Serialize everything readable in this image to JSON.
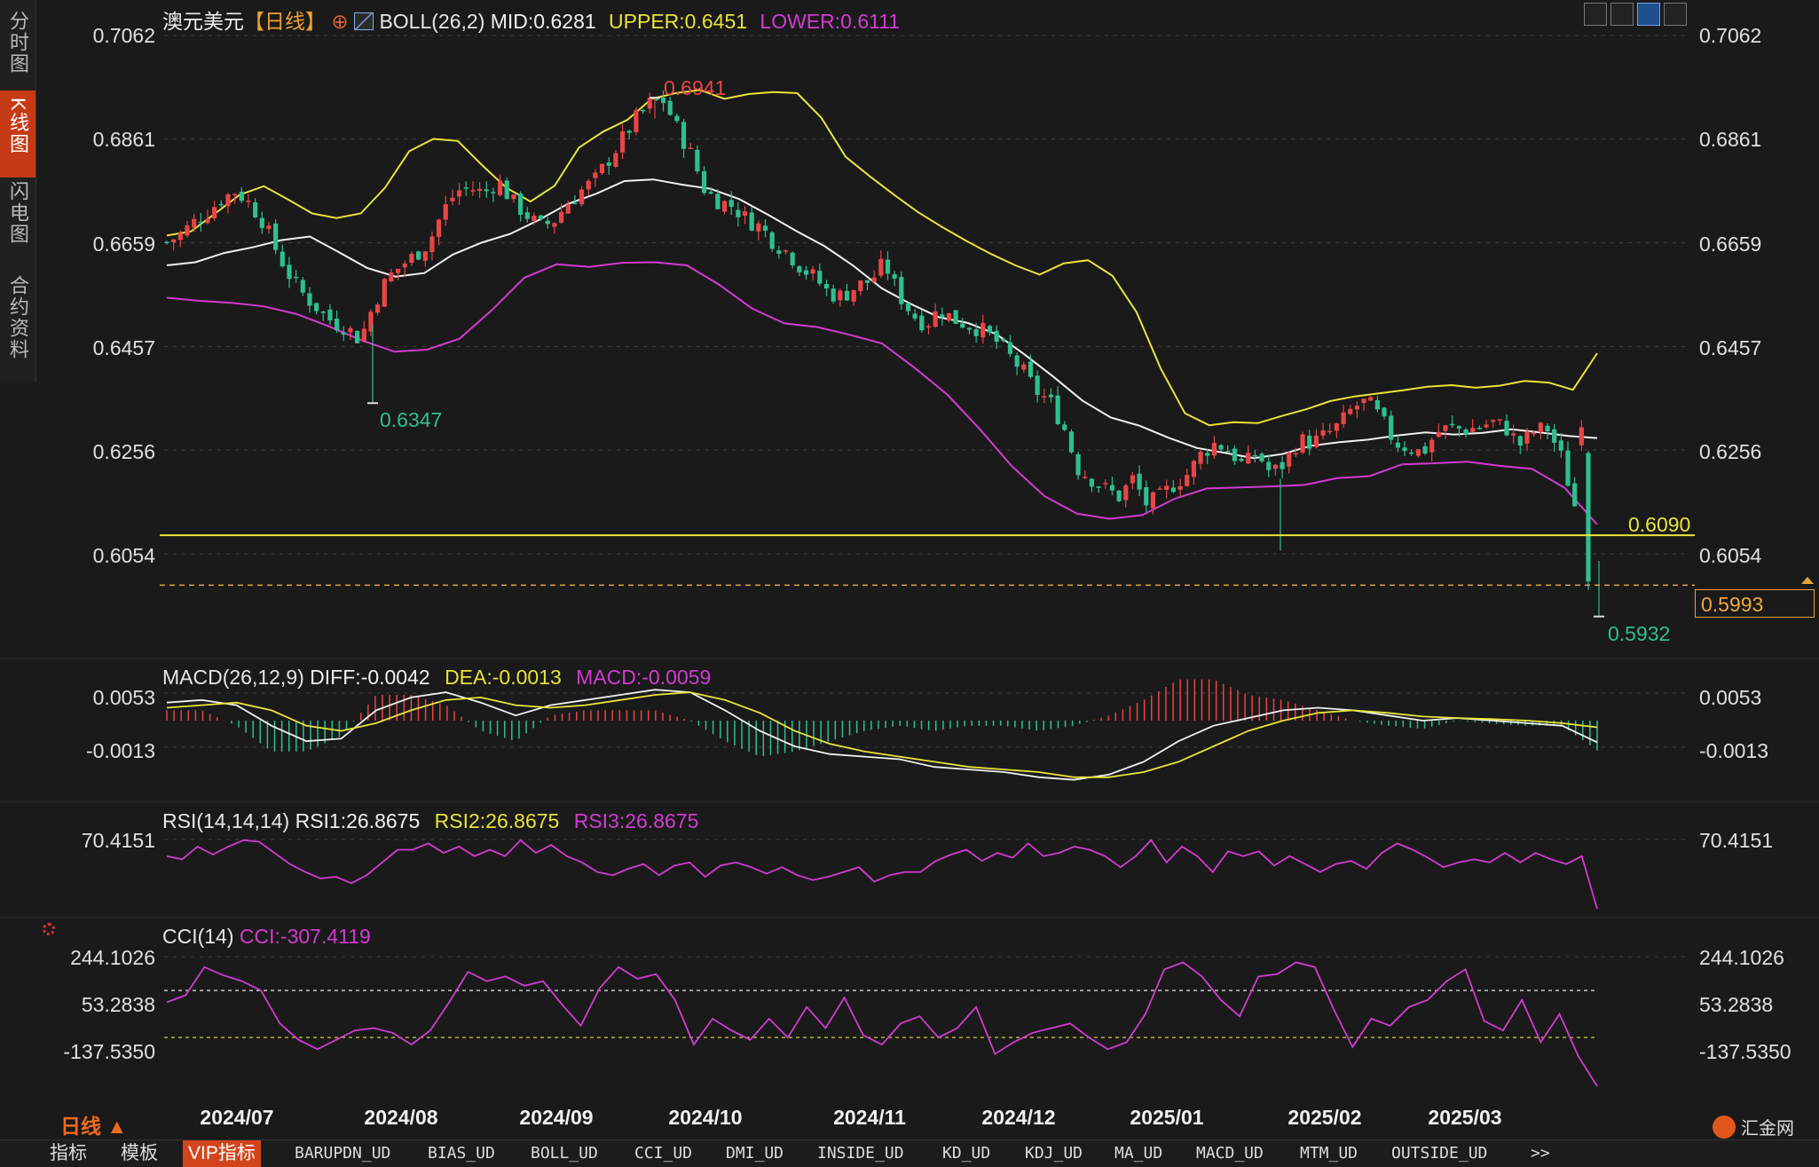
{
  "sidebar": {
    "tabs": [
      {
        "label": "分时图",
        "active": false
      },
      {
        "label": "K线图",
        "active": true
      },
      {
        "label": "闪电图",
        "active": false
      },
      {
        "label": "合约资料",
        "active": false
      }
    ]
  },
  "header": {
    "symbol": "澳元美元",
    "period": "【日线】",
    "indicator": "BOLL(26,2)",
    "mid": "MID:0.6281",
    "upper": "UPPER:0.6451",
    "lower": "LOWER:0.6111"
  },
  "toolbar": {
    "icons": [
      "grid-icon",
      "compare-icon",
      "chart-mode-icon",
      "fullscreen-icon"
    ]
  },
  "price_axis": {
    "ticks": [
      "0.7062",
      "0.6861",
      "0.6659",
      "0.6457",
      "0.6256",
      "0.6054"
    ],
    "tick_values": [
      0.7062,
      0.6861,
      0.6659,
      0.6457,
      0.6256,
      0.6054
    ]
  },
  "annotations": {
    "high": "0.6941",
    "low_aug": "0.6347",
    "low_latest": "0.5932",
    "support_line": "0.6090",
    "current_price": "0.5993"
  },
  "macd": {
    "title": "MACD(26,12,9)",
    "diff": "DIFF:-0.0042",
    "dea": "DEA:-0.0013",
    "macd": "MACD:-0.0059",
    "ticks": [
      "0.0053",
      "-0.0013"
    ]
  },
  "rsi": {
    "title": "RSI(14,14,14)",
    "rsi1": "RSI1:26.8675",
    "rsi2": "RSI2:26.8675",
    "rsi3": "RSI3:26.8675",
    "ticks": [
      "70.4151"
    ]
  },
  "cci": {
    "title": "CCI(14)",
    "cci": "CCI:-307.4119",
    "ticks": [
      "244.1026",
      "53.2838",
      "-137.5350"
    ]
  },
  "time_axis": {
    "labels": [
      "2024/07",
      "2024/08",
      "2024/09",
      "2024/10",
      "2024/11",
      "2024/12",
      "2025/01",
      "2025/02",
      "2025/03"
    ]
  },
  "period_selector": "日线 ▲",
  "bottom_tabs": [
    "指标",
    "模板",
    "VIP指标",
    "BARUPDN_UD",
    "BIAS_UD",
    "BOLL_UD",
    "CCI_UD",
    "DMI_UD",
    "INSIDE_UD",
    "KD_UD",
    "KDJ_UD",
    "MA_UD",
    "MACD_UD",
    "MTM_UD",
    "OUTSIDE_UD",
    ">>"
  ],
  "logo": "汇金网",
  "colors": {
    "up": "#e84545",
    "down": "#2fbf8f",
    "upper": "#e8e43a",
    "lower": "#d23bd2",
    "mid": "#f0f0f0",
    "accent": "#d2451c"
  },
  "chart_data": {
    "type": "candlestick",
    "symbol": "澳元美元",
    "interval": "daily",
    "close_path": [
      0.666,
      0.6675,
      0.67,
      0.672,
      0.6745,
      0.676,
      0.6735,
      0.67,
      0.664,
      0.659,
      0.6555,
      0.653,
      0.6505,
      0.6495,
      0.647,
      0.654,
      0.659,
      0.6615,
      0.6635,
      0.666,
      0.672,
      0.676,
      0.6765,
      0.6755,
      0.678,
      0.674,
      0.6715,
      0.669,
      0.67,
      0.6735,
      0.676,
      0.678,
      0.682,
      0.686,
      0.69,
      0.693,
      0.6935,
      0.688,
      0.683,
      0.676,
      0.674,
      0.673,
      0.6705,
      0.669,
      0.666,
      0.664,
      0.661,
      0.659,
      0.656,
      0.6555,
      0.6575,
      0.6585,
      0.662,
      0.656,
      0.652,
      0.65,
      0.653,
      0.651,
      0.65,
      0.649,
      0.647,
      0.644,
      0.641,
      0.637,
      0.635,
      0.63,
      0.622,
      0.62,
      0.618,
      0.6165,
      0.62,
      0.615,
      0.6165,
      0.619,
      0.621,
      0.625,
      0.627,
      0.6255,
      0.6225,
      0.625,
      0.621,
      0.623,
      0.6275,
      0.627,
      0.6285,
      0.6305,
      0.634,
      0.635,
      0.6315,
      0.627,
      0.626,
      0.625,
      0.629,
      0.63,
      0.6295,
      0.63,
      0.631,
      0.63,
      0.6265,
      0.629,
      0.63,
      0.6245,
      0.615,
      0.5993
    ],
    "close_path_ylim": [
      0.5932,
      0.6941
    ],
    "upper_band": [
      0.6673,
      0.6681,
      0.6716,
      0.6752,
      0.6769,
      0.6743,
      0.6716,
      0.6707,
      0.6716,
      0.6766,
      0.6837,
      0.6861,
      0.6857,
      0.681,
      0.6766,
      0.6739,
      0.677,
      0.6844,
      0.6875,
      0.6898,
      0.6939,
      0.695,
      0.6956,
      0.6939,
      0.6948,
      0.6952,
      0.695,
      0.6902,
      0.6826,
      0.6788,
      0.6752,
      0.6718,
      0.6689,
      0.6662,
      0.6637,
      0.6615,
      0.6597,
      0.6619,
      0.6625,
      0.6595,
      0.6524,
      0.6414,
      0.6327,
      0.6304,
      0.631,
      0.6308,
      0.6322,
      0.6335,
      0.6351,
      0.636,
      0.6366,
      0.6372,
      0.6379,
      0.6382,
      0.6377,
      0.6381,
      0.639,
      0.6387,
      0.6373,
      0.6444
    ],
    "mid_band": [
      0.6615,
      0.6621,
      0.6639,
      0.665,
      0.6664,
      0.6671,
      0.6641,
      0.661,
      0.6593,
      0.66,
      0.6636,
      0.6659,
      0.6676,
      0.6703,
      0.6734,
      0.6754,
      0.6779,
      0.6782,
      0.6772,
      0.6764,
      0.6744,
      0.6714,
      0.6682,
      0.6652,
      0.6614,
      0.657,
      0.654,
      0.6514,
      0.6503,
      0.6481,
      0.6441,
      0.6398,
      0.6352,
      0.6319,
      0.6303,
      0.628,
      0.626,
      0.625,
      0.624,
      0.6248,
      0.6264,
      0.6271,
      0.6276,
      0.6284,
      0.629,
      0.6286,
      0.6289,
      0.6296,
      0.629,
      0.6283,
      0.6279
    ],
    "lower_band": [
      0.6552,
      0.6546,
      0.6542,
      0.6535,
      0.652,
      0.6496,
      0.6469,
      0.6447,
      0.6451,
      0.6472,
      0.6528,
      0.6591,
      0.6617,
      0.6612,
      0.662,
      0.6621,
      0.6615,
      0.6577,
      0.6531,
      0.6502,
      0.6495,
      0.648,
      0.6463,
      0.6416,
      0.6364,
      0.6297,
      0.6224,
      0.6166,
      0.6132,
      0.6122,
      0.6129,
      0.6161,
      0.6181,
      0.6183,
      0.6185,
      0.6188,
      0.6201,
      0.6205,
      0.6228,
      0.623,
      0.6233,
      0.6225,
      0.6219,
      0.6182,
      0.6111
    ],
    "macd_diff": [
      0.0035,
      0.004,
      0.003,
      -0.001,
      -0.004,
      -0.0035,
      0.002,
      0.0045,
      0.0055,
      0.0035,
      0.001,
      0.003,
      0.004,
      0.005,
      0.006,
      0.0055,
      0.002,
      -0.002,
      -0.005,
      -0.0065,
      -0.007,
      -0.0075,
      -0.009,
      -0.0095,
      -0.01,
      -0.011,
      -0.0115,
      -0.0105,
      -0.008,
      -0.004,
      -0.001,
      0.0005,
      0.002,
      0.0025,
      0.002,
      0.001,
      0.0,
      0.0005,
      0.0,
      -0.0005,
      -0.001,
      -0.0042
    ],
    "macd_dea": [
      0.0025,
      0.003,
      0.0035,
      0.002,
      -0.001,
      -0.002,
      -0.0005,
      0.002,
      0.004,
      0.0045,
      0.003,
      0.0025,
      0.003,
      0.004,
      0.005,
      0.0055,
      0.004,
      0.0015,
      -0.002,
      -0.0045,
      -0.006,
      -0.007,
      -0.008,
      -0.009,
      -0.0095,
      -0.01,
      -0.011,
      -0.011,
      -0.01,
      -0.008,
      -0.005,
      -0.002,
      0.0,
      0.0015,
      0.002,
      0.0015,
      0.0008,
      0.0005,
      0.0003,
      0.0,
      -0.0005,
      -0.0013
    ],
    "rsi1": [
      60,
      58,
      66,
      61,
      66,
      70,
      69,
      62,
      55,
      50,
      46,
      47,
      43,
      48,
      56,
      64,
      64,
      68,
      62,
      66,
      60,
      64,
      60,
      70,
      62,
      67,
      60,
      56,
      50,
      48,
      52,
      55,
      48,
      54,
      56,
      47,
      54,
      56,
      53,
      49,
      53,
      48,
      45,
      47,
      50,
      53,
      44,
      48,
      50,
      50,
      57,
      61,
      64,
      57,
      62,
      59,
      68,
      60,
      62,
      66,
      64,
      60,
      53,
      60,
      70,
      56,
      66,
      60,
      50,
      63,
      60,
      63,
      54,
      60,
      55,
      50,
      55,
      57,
      52,
      62,
      68,
      64,
      59,
      53,
      56,
      58,
      56,
      62,
      56,
      62,
      58,
      55,
      60,
      26.8675
    ],
    "cci": [
      50,
      80,
      200,
      165,
      140,
      100,
      -40,
      -110,
      -150,
      -110,
      -70,
      -60,
      -80,
      -130,
      -70,
      50,
      180,
      140,
      160,
      120,
      140,
      40,
      -50,
      110,
      200,
      150,
      170,
      60,
      -130,
      -20,
      -70,
      -110,
      -20,
      -100,
      30,
      -60,
      70,
      -90,
      -130,
      -40,
      -10,
      -100,
      -60,
      30,
      -170,
      -120,
      -80,
      -60,
      -40,
      -100,
      -150,
      -120,
      0,
      190,
      220,
      160,
      60,
      -10,
      160,
      170,
      220,
      200,
      20,
      -140,
      -20,
      -50,
      30,
      60,
      140,
      190,
      -30,
      -70,
      60,
      -120,
      0,
      -180,
      -307.41
    ]
  }
}
